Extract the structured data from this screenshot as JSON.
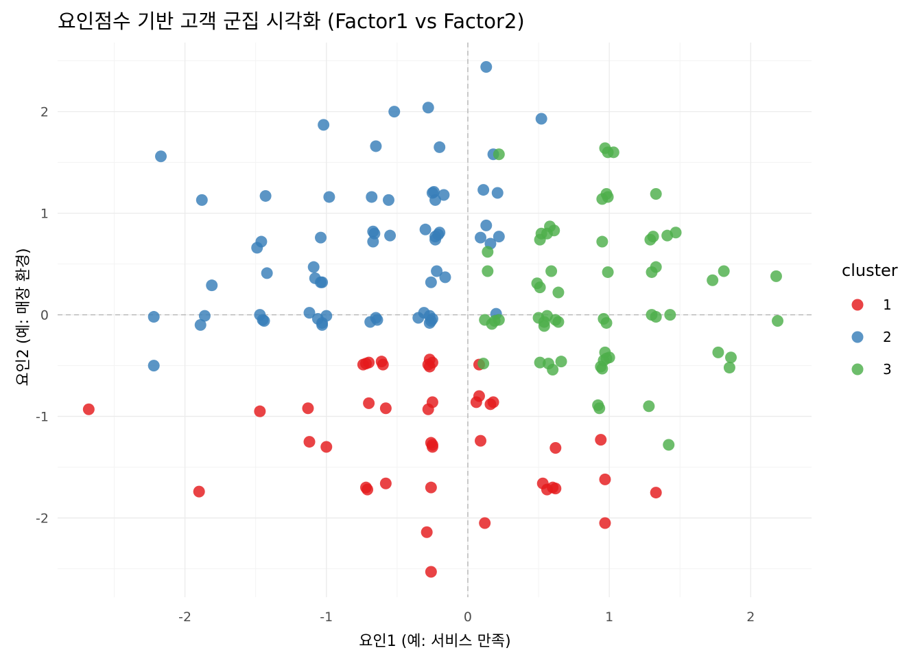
{
  "chart_data": {
    "type": "scatter",
    "title": "요인점수 기반 고객 군집 시각화 (Factor1 vs Factor2)",
    "xlabel": "요인1 (예: 서비스 만족)",
    "ylabel": "요인2 (예: 매장 환경)",
    "xlim": [
      -2.9,
      2.43
    ],
    "ylim": [
      -2.78,
      2.68
    ],
    "x_ticks": [
      -2,
      -1,
      0,
      1,
      2
    ],
    "y_ticks": [
      -2,
      -1,
      0,
      1,
      2
    ],
    "x_tick_labels": [
      "-2",
      "-1",
      "0",
      "1",
      "2"
    ],
    "y_tick_labels": [
      "-2",
      "-1",
      "0",
      "1",
      "2"
    ],
    "grid": true,
    "reference_lines": {
      "x": 0,
      "y": 0,
      "style": "dashed"
    },
    "legend": {
      "title": "cluster",
      "position": "right"
    },
    "series": [
      {
        "name": "1",
        "color": "#E41A1C",
        "points": [
          [
            -2.68,
            -0.93
          ],
          [
            -1.9,
            -1.74
          ],
          [
            -1.47,
            -0.95
          ],
          [
            -1.13,
            -0.92
          ],
          [
            -1.12,
            -1.25
          ],
          [
            -1.0,
            -1.3
          ],
          [
            -0.74,
            -0.49
          ],
          [
            -0.72,
            -0.48
          ],
          [
            -0.7,
            -0.47
          ],
          [
            -0.7,
            -0.87
          ],
          [
            -0.72,
            -1.7
          ],
          [
            -0.71,
            -1.72
          ],
          [
            -0.61,
            -0.46
          ],
          [
            -0.6,
            -0.49
          ],
          [
            -0.58,
            -0.92
          ],
          [
            -0.58,
            -1.66
          ],
          [
            -0.27,
            -0.44
          ],
          [
            -0.25,
            -0.47
          ],
          [
            -0.28,
            -0.49
          ],
          [
            -0.27,
            -0.51
          ],
          [
            -0.25,
            -0.86
          ],
          [
            -0.28,
            -0.93
          ],
          [
            -0.26,
            -1.26
          ],
          [
            -0.25,
            -1.28
          ],
          [
            -0.25,
            -1.3
          ],
          [
            -0.26,
            -1.7
          ],
          [
            -0.29,
            -2.14
          ],
          [
            -0.26,
            -2.53
          ],
          [
            0.08,
            -0.49
          ],
          [
            0.08,
            -0.8
          ],
          [
            0.06,
            -0.86
          ],
          [
            0.16,
            -0.88
          ],
          [
            0.18,
            -0.86
          ],
          [
            0.09,
            -1.24
          ],
          [
            0.12,
            -2.05
          ],
          [
            0.53,
            -1.66
          ],
          [
            0.56,
            -1.72
          ],
          [
            0.6,
            -1.7
          ],
          [
            0.62,
            -1.71
          ],
          [
            0.62,
            -1.31
          ],
          [
            0.94,
            -1.23
          ],
          [
            0.97,
            -1.62
          ],
          [
            0.97,
            -2.05
          ],
          [
            1.33,
            -1.75
          ]
        ]
      },
      {
        "name": "2",
        "color": "#377EB8",
        "points": [
          [
            0.13,
            2.44
          ],
          [
            -0.28,
            2.04
          ],
          [
            -0.52,
            2.0
          ],
          [
            0.52,
            1.93
          ],
          [
            -1.02,
            1.87
          ],
          [
            -0.65,
            1.66
          ],
          [
            -0.2,
            1.65
          ],
          [
            -2.17,
            1.56
          ],
          [
            0.18,
            1.58
          ],
          [
            -1.88,
            1.13
          ],
          [
            -1.43,
            1.17
          ],
          [
            -0.98,
            1.16
          ],
          [
            -0.68,
            1.16
          ],
          [
            -0.56,
            1.13
          ],
          [
            -0.24,
            1.21
          ],
          [
            -0.25,
            1.2
          ],
          [
            -0.23,
            1.13
          ],
          [
            -0.17,
            1.18
          ],
          [
            0.11,
            1.23
          ],
          [
            0.21,
            1.2
          ],
          [
            -0.3,
            0.84
          ],
          [
            -0.67,
            0.82
          ],
          [
            -0.66,
            0.8
          ],
          [
            -0.67,
            0.72
          ],
          [
            -0.55,
            0.78
          ],
          [
            -0.2,
            0.81
          ],
          [
            -0.21,
            0.79
          ],
          [
            -0.23,
            0.77
          ],
          [
            -0.23,
            0.74
          ],
          [
            0.13,
            0.88
          ],
          [
            0.09,
            0.76
          ],
          [
            0.16,
            0.7
          ],
          [
            0.22,
            0.77
          ],
          [
            -1.46,
            0.72
          ],
          [
            -1.49,
            0.66
          ],
          [
            -1.04,
            0.76
          ],
          [
            -1.09,
            0.47
          ],
          [
            -1.08,
            0.36
          ],
          [
            -1.04,
            0.32
          ],
          [
            -1.03,
            0.32
          ],
          [
            -1.42,
            0.41
          ],
          [
            -1.81,
            0.29
          ],
          [
            -0.22,
            0.43
          ],
          [
            -0.16,
            0.37
          ],
          [
            -0.26,
            0.32
          ],
          [
            -2.22,
            -0.02
          ],
          [
            -2.22,
            -0.5
          ],
          [
            -1.86,
            -0.01
          ],
          [
            -1.89,
            -0.1
          ],
          [
            -1.47,
            0.0
          ],
          [
            -1.45,
            -0.05
          ],
          [
            -1.44,
            -0.06
          ],
          [
            -1.12,
            0.02
          ],
          [
            -1.06,
            -0.04
          ],
          [
            -1.03,
            -0.08
          ],
          [
            -1.03,
            -0.1
          ],
          [
            -1.0,
            -0.01
          ],
          [
            -0.69,
            -0.07
          ],
          [
            -0.65,
            -0.03
          ],
          [
            -0.64,
            -0.05
          ],
          [
            -0.31,
            0.02
          ],
          [
            -0.35,
            -0.03
          ],
          [
            -0.27,
            -0.01
          ],
          [
            -0.25,
            -0.04
          ],
          [
            -0.26,
            -0.06
          ],
          [
            -0.27,
            -0.08
          ],
          [
            0.2,
            0.01
          ]
        ]
      },
      {
        "name": "3",
        "color": "#4DAF4A",
        "points": [
          [
            0.22,
            1.58
          ],
          [
            0.97,
            1.64
          ],
          [
            0.99,
            1.6
          ],
          [
            1.03,
            1.6
          ],
          [
            0.98,
            1.19
          ],
          [
            0.95,
            1.14
          ],
          [
            0.99,
            1.16
          ],
          [
            1.33,
            1.19
          ],
          [
            0.58,
            0.87
          ],
          [
            0.52,
            0.8
          ],
          [
            0.56,
            0.8
          ],
          [
            0.61,
            0.83
          ],
          [
            0.51,
            0.74
          ],
          [
            0.95,
            0.72
          ],
          [
            1.29,
            0.74
          ],
          [
            1.31,
            0.77
          ],
          [
            1.41,
            0.78
          ],
          [
            1.47,
            0.81
          ],
          [
            0.14,
            0.62
          ],
          [
            0.14,
            0.43
          ],
          [
            0.49,
            0.31
          ],
          [
            0.51,
            0.27
          ],
          [
            0.59,
            0.43
          ],
          [
            0.64,
            0.22
          ],
          [
            0.99,
            0.42
          ],
          [
            1.3,
            0.42
          ],
          [
            1.33,
            0.47
          ],
          [
            1.73,
            0.34
          ],
          [
            1.81,
            0.43
          ],
          [
            2.18,
            0.38
          ],
          [
            0.12,
            -0.05
          ],
          [
            0.17,
            -0.09
          ],
          [
            0.19,
            -0.06
          ],
          [
            0.22,
            -0.05
          ],
          [
            0.5,
            -0.03
          ],
          [
            0.54,
            -0.07
          ],
          [
            0.56,
            -0.01
          ],
          [
            0.54,
            -0.11
          ],
          [
            0.62,
            -0.05
          ],
          [
            0.64,
            -0.07
          ],
          [
            0.96,
            -0.04
          ],
          [
            0.98,
            -0.08
          ],
          [
            1.3,
            0.0
          ],
          [
            1.33,
            -0.02
          ],
          [
            1.43,
            0.0
          ],
          [
            2.19,
            -0.06
          ],
          [
            0.11,
            -0.48
          ],
          [
            0.51,
            -0.47
          ],
          [
            0.57,
            -0.48
          ],
          [
            0.6,
            -0.54
          ],
          [
            0.66,
            -0.46
          ],
          [
            0.94,
            -0.51
          ],
          [
            0.95,
            -0.53
          ],
          [
            0.97,
            -0.37
          ],
          [
            0.98,
            -0.43
          ],
          [
            1.0,
            -0.42
          ],
          [
            0.96,
            -0.45
          ],
          [
            1.77,
            -0.37
          ],
          [
            1.86,
            -0.42
          ],
          [
            1.85,
            -0.52
          ],
          [
            0.92,
            -0.89
          ],
          [
            0.93,
            -0.92
          ],
          [
            1.28,
            -0.9
          ],
          [
            1.42,
            -1.28
          ]
        ]
      }
    ]
  }
}
